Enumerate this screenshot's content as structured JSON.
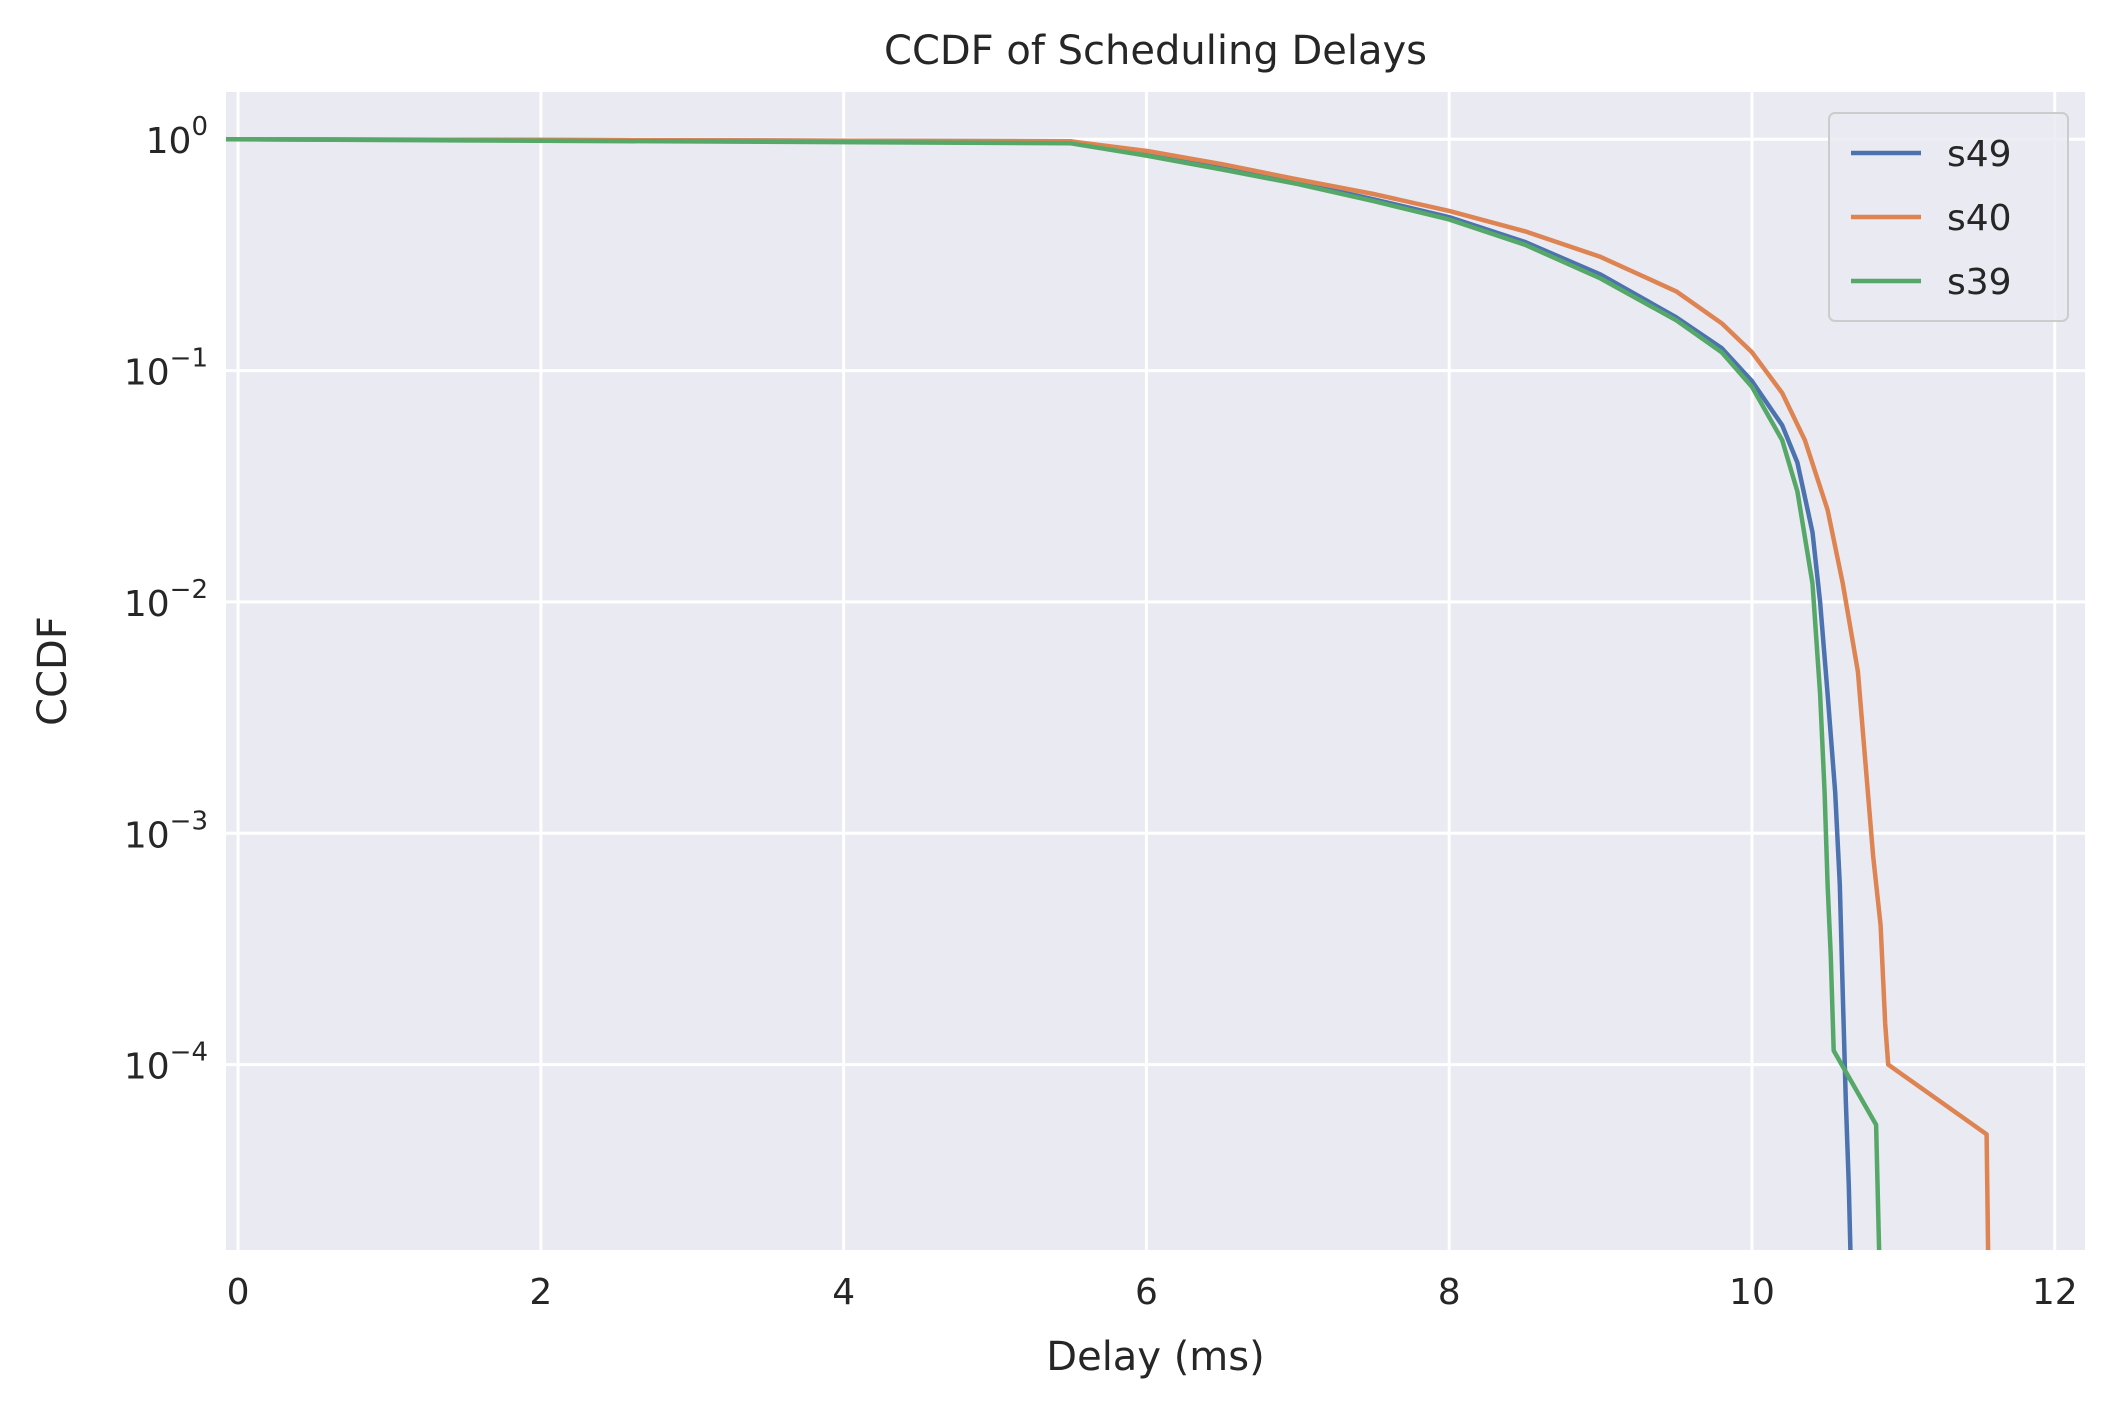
{
  "chart_data": {
    "type": "line",
    "title": "CCDF of Scheduling Delays",
    "xlabel": "Delay (ms)",
    "ylabel": "CCDF",
    "xscale": "linear",
    "yscale": "log",
    "xlim": [
      -0.08,
      12.2
    ],
    "ylim": [
      1.58e-05,
      1.6
    ],
    "xticks": [
      0,
      2,
      4,
      6,
      8,
      10,
      12
    ],
    "yticks": [
      {
        "value": 1,
        "base": "10",
        "exp": "0"
      },
      {
        "value": 0.1,
        "base": "10",
        "exp": "−1"
      },
      {
        "value": 0.01,
        "base": "10",
        "exp": "−2"
      },
      {
        "value": 0.001,
        "base": "10",
        "exp": "−3"
      },
      {
        "value": 0.0001,
        "base": "10",
        "exp": "−4"
      }
    ],
    "grid": true,
    "legend_position": "upper-right",
    "series": [
      {
        "name": "s49",
        "color": "#4c72b0",
        "x": [
          -0.08,
          5.5,
          6.0,
          6.5,
          7.0,
          7.5,
          8.0,
          8.5,
          9.0,
          9.5,
          9.8,
          10.0,
          10.2,
          10.3,
          10.4,
          10.45,
          10.5,
          10.55,
          10.58,
          10.6,
          10.62,
          10.64,
          10.65
        ],
        "y": [
          1.0,
          0.98,
          0.87,
          0.76,
          0.65,
          0.55,
          0.46,
          0.36,
          0.26,
          0.17,
          0.125,
          0.09,
          0.058,
          0.04,
          0.02,
          0.01,
          0.004,
          0.0015,
          0.0006,
          0.0002,
          7e-05,
          3e-05,
          1.58e-05
        ]
      },
      {
        "name": "s40",
        "color": "#dd8452",
        "x": [
          -0.08,
          5.5,
          6.0,
          6.5,
          7.0,
          7.5,
          8.0,
          8.5,
          9.0,
          9.5,
          9.8,
          10.0,
          10.2,
          10.35,
          10.5,
          10.6,
          10.7,
          10.75,
          10.8,
          10.85,
          10.88,
          10.9,
          11.55,
          11.56
        ],
        "y": [
          1.0,
          0.98,
          0.89,
          0.78,
          0.67,
          0.58,
          0.49,
          0.4,
          0.31,
          0.22,
          0.16,
          0.12,
          0.08,
          0.05,
          0.025,
          0.012,
          0.005,
          0.002,
          0.0008,
          0.0004,
          0.00015,
          0.0001,
          5e-05,
          1.58e-05
        ]
      },
      {
        "name": "s39",
        "color": "#55a868",
        "x": [
          -0.08,
          5.5,
          6.0,
          6.5,
          7.0,
          7.5,
          8.0,
          8.5,
          9.0,
          9.5,
          9.8,
          10.0,
          10.2,
          10.3,
          10.4,
          10.45,
          10.48,
          10.5,
          10.52,
          10.54,
          10.82,
          10.84
        ],
        "y": [
          1.0,
          0.96,
          0.85,
          0.74,
          0.64,
          0.54,
          0.45,
          0.35,
          0.25,
          0.165,
          0.12,
          0.085,
          0.05,
          0.03,
          0.012,
          0.004,
          0.0015,
          0.0006,
          0.0003,
          0.000115,
          5.5e-05,
          1.58e-05
        ]
      }
    ]
  }
}
